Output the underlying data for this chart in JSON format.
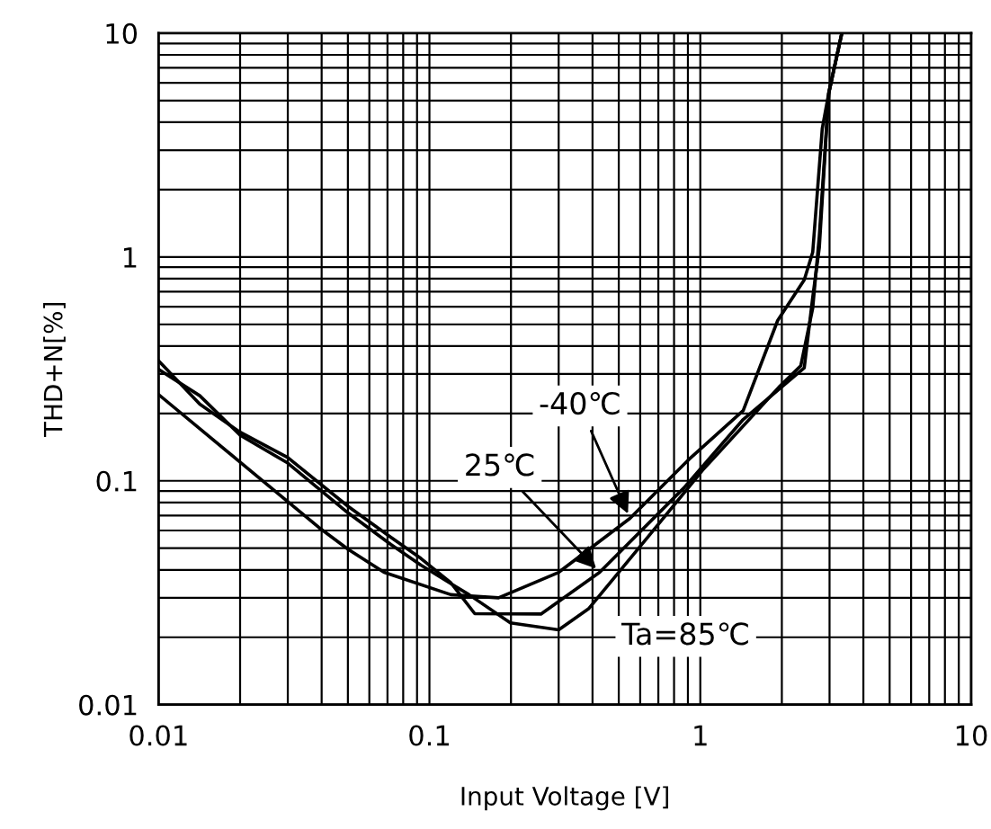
{
  "chart_data": {
    "type": "line",
    "xlabel": "Input Voltage [V]",
    "ylabel": "THD+N[%]",
    "log": "xy",
    "grid": true,
    "legend": false,
    "marker": "none",
    "line_style": "solid",
    "xlim": [
      0.01,
      10
    ],
    "ylim": [
      0.01,
      10
    ],
    "xticks": [
      0.01,
      0.1,
      1,
      10
    ],
    "yticks": [
      0.01,
      0.1,
      1,
      10
    ],
    "series": [
      {
        "color": "#000000",
        "x": [
          0.01,
          0.039,
          0.05,
          0.068,
          0.12,
          0.18,
          0.3,
          0.55,
          0.91,
          1.44,
          1.93,
          2.42,
          2.6,
          2.82,
          2.98,
          3.33
        ],
        "values": [
          0.243,
          0.062,
          0.0495,
          0.039,
          0.031,
          0.03,
          0.039,
          0.068,
          0.125,
          0.206,
          0.52,
          0.79,
          1.05,
          3.75,
          5.4,
          10
        ]
      },
      {
        "color": "#000000",
        "x": [
          0.01,
          0.0142,
          0.02,
          0.03,
          0.05,
          0.072,
          0.093,
          0.12,
          0.147,
          0.258,
          0.425,
          0.87,
          1.44,
          2.42,
          2.6,
          2.75,
          2.98,
          3.33
        ],
        "values": [
          0.344,
          0.22,
          0.165,
          0.127,
          0.077,
          0.056,
          0.045,
          0.035,
          0.0255,
          0.0254,
          0.039,
          0.093,
          0.188,
          0.32,
          0.66,
          1.1,
          5.4,
          10
        ]
      },
      {
        "color": "#000000",
        "x": [
          0.01,
          0.0142,
          0.02,
          0.03,
          0.05,
          0.072,
          0.093,
          0.14,
          0.199,
          0.3,
          0.388,
          0.643,
          1.02,
          1.95,
          2.35,
          2.6,
          2.75,
          2.98,
          3.33
        ],
        "values": [
          0.315,
          0.24,
          0.16,
          0.12,
          0.072,
          0.052,
          0.042,
          0.031,
          0.0232,
          0.0216,
          0.0269,
          0.0564,
          0.1116,
          0.262,
          0.327,
          0.59,
          1.24,
          5.4,
          10
        ]
      }
    ],
    "annotations": [
      {
        "text": "-40℃",
        "x": 0.55,
        "y": 0.068
      },
      {
        "text": "25℃",
        "x": 0.425,
        "y": 0.039
      },
      {
        "text": "Ta=85℃",
        "x": 0.643,
        "y": 0.0564
      }
    ]
  }
}
